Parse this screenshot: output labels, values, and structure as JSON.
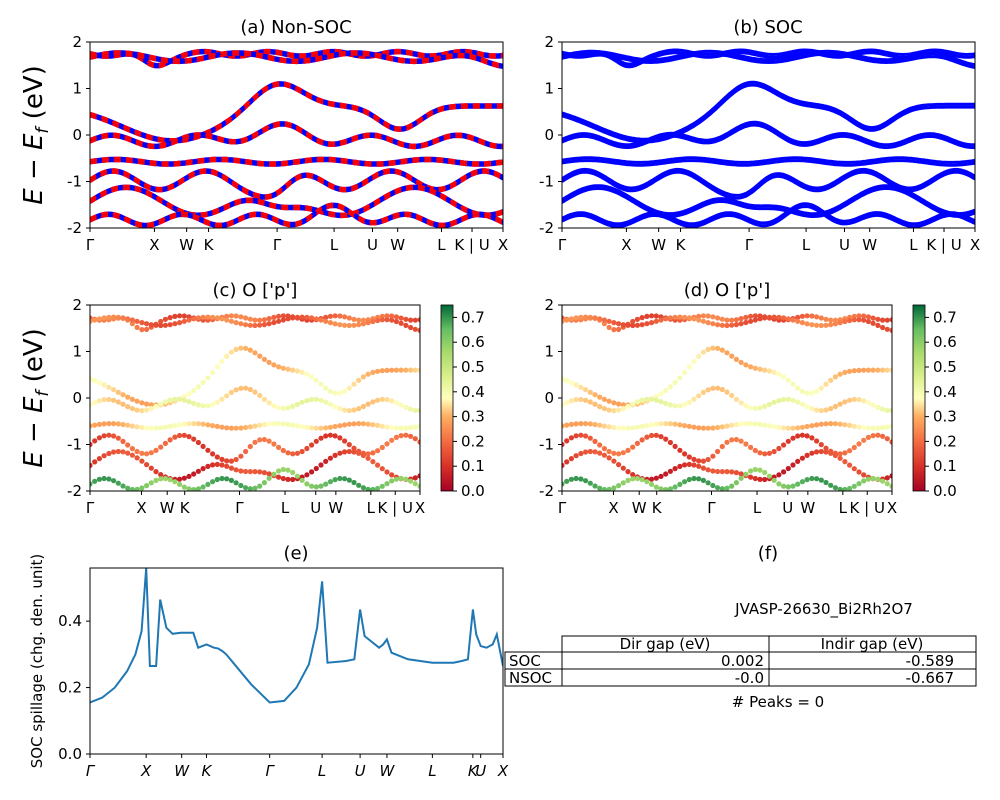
{
  "path_labels": [
    "Γ",
    "X",
    "W",
    "K",
    "Γ",
    "L",
    "U",
    "W",
    "L",
    "K | U",
    "X"
  ],
  "path_positions": [
    0,
    0.156,
    0.234,
    0.287,
    0.453,
    0.591,
    0.684,
    0.745,
    0.851,
    0.925,
    1.0
  ],
  "ylabel_energy": "E − E",
  "ylabel_energy_sub": "f",
  "ylabel_energy_unit": " (eV)",
  "colors": {
    "nonsoc_a": "#ff0000",
    "nonsoc_b": "#0000ff",
    "soc": "#0000ff",
    "spillage": "#1f77b4"
  },
  "chart_data": [
    {
      "id": "a",
      "type": "line",
      "title": "(a) Non-SOC",
      "ylim": [
        -2,
        2
      ],
      "yticks": [
        -2,
        -1,
        0,
        1,
        2
      ],
      "xticks": [
        "Γ",
        "X",
        "W",
        "K",
        "Γ",
        "L",
        "U",
        "W",
        "L",
        "K | U",
        "X"
      ],
      "series_note_colors": [
        "red",
        "blue"
      ],
      "band_count": 8
    },
    {
      "id": "b",
      "type": "line",
      "title": "(b) SOC",
      "ylim": [
        -2,
        2
      ],
      "yticks": [
        -2,
        -1,
        0,
        1,
        2
      ],
      "xticks": [
        "Γ",
        "X",
        "W",
        "K",
        "Γ",
        "L",
        "U",
        "W",
        "L",
        "K | U",
        "X"
      ],
      "band_count": 8
    },
    {
      "id": "c",
      "type": "scatter",
      "title": "(c)  O ['p']",
      "ylim": [
        -2,
        2
      ],
      "yticks": [
        -2,
        -1,
        0,
        1,
        2
      ],
      "xticks": [
        "Γ",
        "X",
        "W",
        "K",
        "Γ",
        "L",
        "U",
        "W",
        "L",
        "K | U",
        "X"
      ],
      "colorbar": {
        "min": 0.0,
        "max": 0.75,
        "ticks": [
          "0.0",
          "0.1",
          "0.2",
          "0.3",
          "0.4",
          "0.5",
          "0.6",
          "0.7"
        ]
      }
    },
    {
      "id": "d",
      "type": "scatter",
      "title": "(d) O ['p']",
      "ylim": [
        -2,
        2
      ],
      "yticks": [
        -2,
        -1,
        0,
        1,
        2
      ],
      "xticks": [
        "Γ",
        "X",
        "W",
        "K",
        "Γ",
        "L",
        "U",
        "W",
        "L",
        "K | U",
        "X"
      ],
      "colorbar": {
        "min": 0.0,
        "max": 0.75,
        "ticks": [
          "0.0",
          "0.1",
          "0.2",
          "0.3",
          "0.4",
          "0.5",
          "0.6",
          "0.7"
        ]
      }
    },
    {
      "id": "e",
      "type": "line",
      "title": "(e)",
      "ylabel": "SOC spillage (chg. den. unit)",
      "ylim": [
        0,
        0.56
      ],
      "yticks": [
        "0.0",
        "0.2",
        "0.4"
      ],
      "xticks": [
        "Γ",
        "X",
        "W",
        "K",
        "Γ",
        "L",
        "U",
        "W",
        "L",
        "K",
        "U",
        "X"
      ],
      "xtick_positions": [
        0,
        0.136,
        0.222,
        0.282,
        0.435,
        0.562,
        0.654,
        0.719,
        0.829,
        0.927,
        0.946,
        1.0
      ],
      "x": [
        0,
        0.03,
        0.06,
        0.09,
        0.11,
        0.125,
        0.136,
        0.145,
        0.16,
        0.17,
        0.185,
        0.2,
        0.22,
        0.235,
        0.25,
        0.262,
        0.282,
        0.3,
        0.31,
        0.32,
        0.33,
        0.35,
        0.39,
        0.435,
        0.47,
        0.5,
        0.53,
        0.55,
        0.562,
        0.575,
        0.62,
        0.64,
        0.654,
        0.665,
        0.7,
        0.71,
        0.719,
        0.73,
        0.77,
        0.829,
        0.88,
        0.9,
        0.915,
        0.927,
        0.935,
        0.946,
        0.96,
        0.975,
        0.985,
        1.0
      ],
      "y": [
        0.155,
        0.17,
        0.2,
        0.25,
        0.3,
        0.37,
        0.56,
        0.265,
        0.265,
        0.465,
        0.38,
        0.362,
        0.365,
        0.365,
        0.365,
        0.32,
        0.33,
        0.32,
        0.318,
        0.31,
        0.3,
        0.27,
        0.21,
        0.155,
        0.16,
        0.2,
        0.27,
        0.38,
        0.52,
        0.275,
        0.28,
        0.285,
        0.435,
        0.355,
        0.32,
        0.33,
        0.345,
        0.305,
        0.285,
        0.275,
        0.275,
        0.28,
        0.285,
        0.435,
        0.36,
        0.325,
        0.32,
        0.33,
        0.36,
        0.265
      ],
      "line_y_last_label": "",
      "series_color": "#1f77b4"
    },
    {
      "id": "f",
      "type": "table",
      "title": "(f)",
      "caption": "JVASP-26630_Bi2Rh2O7",
      "columns": [
        "",
        "Dir gap (eV)",
        "Indir gap (eV)"
      ],
      "rows": [
        [
          "SOC",
          "0.002",
          "-0.589"
        ],
        [
          "NSOC",
          "-0.0",
          "-0.667"
        ]
      ],
      "footer": "# Peaks = 0"
    }
  ]
}
